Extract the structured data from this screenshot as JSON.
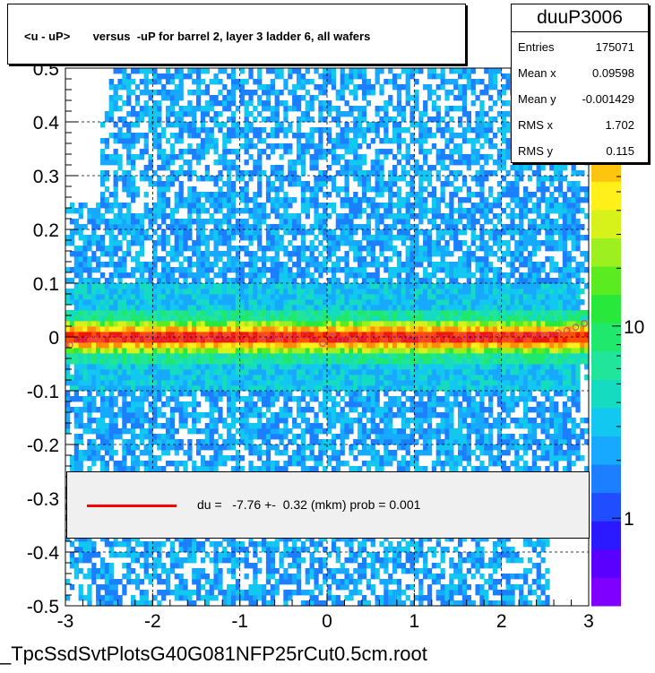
{
  "chart_data": {
    "type": "heatmap",
    "title": "<u - uP>       versus  -uP for barrel 2, layer 3 ladder 6, all wafers",
    "xlim": [
      -3,
      3
    ],
    "ylim": [
      -0.5,
      0.5
    ],
    "x_ticks": [
      "-3",
      "-2",
      "-1",
      "0",
      "1",
      "2",
      "3"
    ],
    "y_ticks": [
      "-0.5",
      "-0.4",
      "-0.3",
      "-0.2",
      "-0.1",
      "0",
      "0.1",
      "0.2",
      "0.3",
      "0.4",
      "0.5"
    ],
    "z_scale": "log",
    "z_ticks": [
      "1",
      "10"
    ],
    "z_tick_values": [
      1,
      10
    ],
    "grid": true,
    "stats": {
      "name": "duuP3006",
      "rows": [
        {
          "label": "Entries",
          "value": "175071"
        },
        {
          "label": "Mean x",
          "value": "0.09598"
        },
        {
          "label": "Mean y",
          "value": "-0.001429"
        },
        {
          "label": "RMS x",
          "value": "1.702"
        },
        {
          "label": "RMS y",
          "value": "0.115"
        }
      ]
    },
    "fit_text": "du =   -7.76 +-  0.32 (mkm) prob = 0.001",
    "profile": {
      "x": [
        -2.95,
        -2.85,
        -2.75,
        -2.65,
        -2.55,
        -2.45,
        -2.35,
        -2.25,
        -2.15,
        -2.05,
        -1.95,
        -1.85,
        -1.75,
        -1.65,
        -1.55,
        -1.45,
        -1.35,
        -1.25,
        -1.15,
        -1.05,
        -0.95,
        -0.85,
        -0.75,
        -0.65,
        -0.55,
        -0.45,
        -0.35,
        -0.25,
        -0.15,
        -0.05,
        0.05,
        0.15,
        0.25,
        0.35,
        0.45,
        0.55,
        0.65,
        0.75,
        0.85,
        0.95,
        1.05,
        1.15,
        1.25,
        1.35,
        1.45,
        1.55,
        1.65,
        1.75,
        1.85,
        1.95,
        2.05,
        2.15,
        2.25,
        2.35,
        2.45,
        2.55,
        2.65,
        2.75,
        2.85,
        2.95
      ],
      "y": [
        -0.015,
        -0.005,
        -0.004,
        -0.003,
        -0.003,
        -0.002,
        -0.002,
        -0.002,
        -0.002,
        -0.001,
        -0.002,
        -0.002,
        -0.001,
        -0.001,
        -0.002,
        -0.002,
        -0.002,
        -0.001,
        -0.001,
        -0.002,
        -0.002,
        -0.002,
        -0.001,
        -0.001,
        -0.001,
        0.0,
        -0.002,
        0.003,
        -0.004,
        -0.012,
        0.0,
        -0.005,
        -0.004,
        -0.003,
        -0.003,
        -0.002,
        -0.003,
        -0.002,
        -0.002,
        -0.002,
        -0.002,
        -0.002,
        -0.002,
        -0.002,
        -0.002,
        -0.001,
        -0.001,
        -0.001,
        -0.001,
        -0.001,
        0.0,
        0.0,
        0.0,
        0.002,
        0.003,
        0.004,
        0.008,
        0.012,
        0.018,
        0.025
      ]
    },
    "colors": {
      "palette": [
        "#7f00ff",
        "#5a00ff",
        "#2b1aff",
        "#1f4dff",
        "#1b7fff",
        "#17a8ff",
        "#12c8f0",
        "#15dcc0",
        "#20e59a",
        "#20e86c",
        "#28e83c",
        "#5aec20",
        "#9cf020",
        "#d6f21a",
        "#fff01a",
        "#ffc40e",
        "#ff8c0a",
        "#ff4e06",
        "#f01800"
      ],
      "fit_line": "#ff0000",
      "fit_box": "#f0f0f0",
      "profile_marker": "#cc3399"
    }
  },
  "filename": "_TpcSsdSvtPlotsG40G081NFP25rCut0.5cm.root"
}
